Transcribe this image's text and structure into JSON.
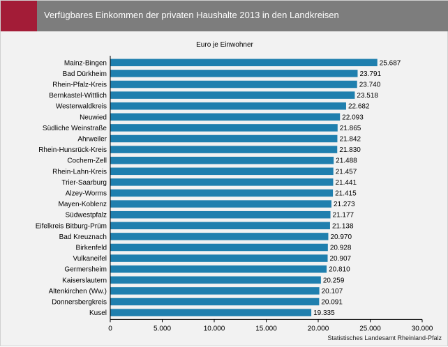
{
  "header": {
    "title": "Verfügbares Einkommen der privaten Haushalte 2013 in den Landkreisen",
    "accent_color": "#a31c37",
    "bar_color": "#7d7d7d"
  },
  "source": "Statistisches Landesamt Rheinland-Pfalz",
  "chart_data": {
    "type": "bar",
    "orientation": "horizontal",
    "subtitle": "Euro je Einwohner",
    "bar_color": "#1f7fae",
    "xlim": [
      0,
      30000
    ],
    "xticks": [
      0,
      5000,
      10000,
      15000,
      20000,
      25000,
      30000
    ],
    "xtick_labels": [
      "0",
      "5.000",
      "10.000",
      "15.000",
      "20.000",
      "25.000",
      "30.000"
    ],
    "grid": false,
    "categories": [
      "Mainz-Bingen",
      "Bad Dürkheim",
      "Rhein-Pfalz-Kreis",
      "Bernkastel-Wittlich",
      "Westerwaldkreis",
      "Neuwied",
      "Südliche Weinstraße",
      "Ahrweiler",
      "Rhein-Hunsrück-Kreis",
      "Cochem-Zell",
      "Rhein-Lahn-Kreis",
      "Trier-Saarburg",
      "Alzey-Worms",
      "Mayen-Koblenz",
      "Südwestpfalz",
      "Eifelkreis Bitburg-Prüm",
      "Bad Kreuznach",
      "Birkenfeld",
      "Vulkaneifel",
      "Germersheim",
      "Kaiserslautern",
      "Altenkirchen (Ww.)",
      "Donnersbergkreis",
      "Kusel"
    ],
    "values": [
      25687,
      23791,
      23740,
      23518,
      22682,
      22093,
      21865,
      21842,
      21830,
      21488,
      21457,
      21441,
      21415,
      21273,
      21177,
      21138,
      20970,
      20928,
      20907,
      20810,
      20259,
      20107,
      20091,
      19335
    ],
    "value_labels": [
      "25.687",
      "23.791",
      "23.740",
      "23.518",
      "22.682",
      "22.093",
      "21.865",
      "21.842",
      "21.830",
      "21.488",
      "21.457",
      "21.441",
      "21.415",
      "21.273",
      "21.177",
      "21.138",
      "20.970",
      "20.928",
      "20.907",
      "20.810",
      "20.259",
      "20.107",
      "20.091",
      "19.335"
    ]
  }
}
